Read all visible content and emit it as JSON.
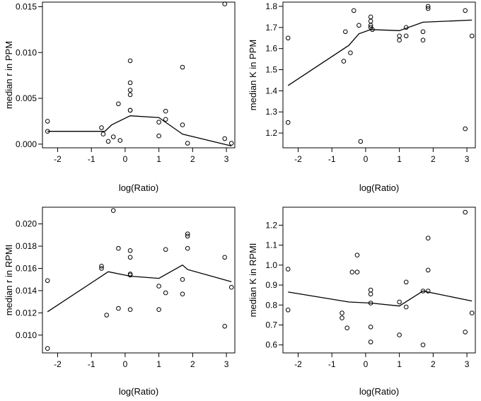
{
  "chart_data": [
    {
      "type": "scatter",
      "title": "",
      "xlabel": "log(Ratio)",
      "ylabel": "median r in PPM",
      "xlim": [
        -2.45,
        3.25
      ],
      "ylim": [
        -0.0004,
        0.0155
      ],
      "xticks": [
        -2,
        -1,
        0,
        1,
        2,
        3
      ],
      "yticks": [
        0.0,
        0.005,
        0.01,
        0.015
      ],
      "ytick_labels": [
        "0.000",
        "0.005",
        "0.010",
        "0.015"
      ],
      "points": {
        "x": [
          -2.3,
          -2.3,
          -0.7,
          -0.65,
          -0.5,
          -0.35,
          -0.2,
          -0.15,
          0.15,
          0.15,
          0.15,
          0.15,
          0.15,
          0.15,
          1.0,
          1.0,
          1.2,
          1.2,
          1.7,
          1.7,
          1.85,
          2.95,
          2.95,
          3.15
        ],
        "y": [
          0.0025,
          0.0014,
          0.0018,
          0.0011,
          0.0003,
          0.0008,
          0.0044,
          0.0004,
          0.0091,
          0.0067,
          0.0059,
          0.0054,
          0.0037,
          0.0037,
          0.0024,
          0.0009,
          0.0036,
          0.0027,
          0.0084,
          0.0021,
          0.0001,
          0.0153,
          0.0006,
          0.0001
        ]
      },
      "smooth_line": {
        "x": [
          -2.3,
          -0.6,
          -0.4,
          0.15,
          1.0,
          1.7,
          3.15
        ],
        "y": [
          0.0014,
          0.0014,
          0.0021,
          0.0031,
          0.0029,
          0.0011,
          -0.0002
        ]
      }
    },
    {
      "type": "scatter",
      "title": "",
      "xlabel": "log(Ratio)",
      "ylabel": "median K in PPM",
      "xlim": [
        -2.45,
        3.25
      ],
      "ylim": [
        1.13,
        1.82
      ],
      "xticks": [
        -2,
        -1,
        0,
        1,
        2,
        3
      ],
      "yticks": [
        1.2,
        1.3,
        1.4,
        1.5,
        1.6,
        1.7,
        1.8
      ],
      "ytick_labels": [
        "1.2",
        "1.3",
        "1.4",
        "1.5",
        "1.6",
        "1.7",
        "1.8"
      ],
      "points": {
        "x": [
          -2.3,
          -2.3,
          -0.65,
          -0.6,
          -0.45,
          -0.35,
          -0.2,
          -0.15,
          0.15,
          0.15,
          0.15,
          0.15,
          0.2,
          1.0,
          1.0,
          1.2,
          1.2,
          1.7,
          1.7,
          1.85,
          1.85,
          2.95,
          2.95,
          3.15
        ],
        "y": [
          1.65,
          1.25,
          1.54,
          1.68,
          1.58,
          1.78,
          1.71,
          1.16,
          1.75,
          1.73,
          1.71,
          1.7,
          1.69,
          1.66,
          1.64,
          1.7,
          1.66,
          1.68,
          1.64,
          1.8,
          1.79,
          1.78,
          1.22,
          1.66
        ]
      },
      "smooth_line": {
        "x": [
          -2.3,
          -0.5,
          -0.2,
          0.15,
          1.0,
          1.7,
          3.15
        ],
        "y": [
          1.425,
          1.615,
          1.67,
          1.69,
          1.685,
          1.725,
          1.735
        ]
      }
    },
    {
      "type": "scatter",
      "title": "",
      "xlabel": "log(Ratio)",
      "ylabel": "median r in RPMI",
      "xlim": [
        -2.45,
        3.25
      ],
      "ylim": [
        0.0084,
        0.0215
      ],
      "xticks": [
        -2,
        -1,
        0,
        1,
        2,
        3
      ],
      "yticks": [
        0.01,
        0.012,
        0.014,
        0.016,
        0.018,
        0.02
      ],
      "ytick_labels": [
        "0.010",
        "0.012",
        "0.014",
        "0.016",
        "0.018",
        "0.020"
      ],
      "points": {
        "x": [
          -2.3,
          -2.3,
          -0.7,
          -0.7,
          -0.55,
          -0.35,
          -0.2,
          -0.2,
          0.15,
          0.15,
          0.15,
          0.15,
          0.15,
          1.0,
          1.0,
          1.2,
          1.2,
          1.7,
          1.7,
          1.85,
          1.85,
          1.85,
          2.95,
          2.95,
          3.15
        ],
        "y": [
          0.0149,
          0.0088,
          0.0162,
          0.016,
          0.0118,
          0.0212,
          0.0178,
          0.0124,
          0.0176,
          0.017,
          0.0155,
          0.0154,
          0.0123,
          0.0144,
          0.0123,
          0.0177,
          0.0138,
          0.015,
          0.0137,
          0.0191,
          0.0189,
          0.0178,
          0.017,
          0.0108,
          0.0143
        ]
      },
      "smooth_line": {
        "x": [
          -2.3,
          -0.5,
          0.15,
          1.0,
          1.7,
          1.85,
          3.15
        ],
        "y": [
          0.0121,
          0.0157,
          0.0153,
          0.0151,
          0.0163,
          0.0159,
          0.0148
        ]
      }
    },
    {
      "type": "scatter",
      "title": "",
      "xlabel": "log(Ratio)",
      "ylabel": "median K in RPMI",
      "xlim": [
        -2.45,
        3.25
      ],
      "ylim": [
        0.56,
        1.29
      ],
      "xticks": [
        -2,
        -1,
        0,
        1,
        2,
        3
      ],
      "yticks": [
        0.6,
        0.7,
        0.8,
        0.9,
        1.0,
        1.1,
        1.2
      ],
      "ytick_labels": [
        "0.6",
        "0.7",
        "0.8",
        "0.9",
        "1.0",
        "1.1",
        "1.2"
      ],
      "points": {
        "x": [
          -2.3,
          -2.3,
          -0.7,
          -0.7,
          -0.55,
          -0.4,
          -0.25,
          -0.25,
          0.15,
          0.15,
          0.15,
          0.15,
          0.15,
          1.0,
          1.0,
          1.2,
          1.2,
          1.7,
          1.7,
          1.85,
          1.85,
          1.85,
          2.95,
          2.95,
          3.15
        ],
        "y": [
          0.98,
          0.775,
          0.76,
          0.735,
          0.685,
          0.965,
          1.05,
          0.965,
          0.875,
          0.855,
          0.81,
          0.69,
          0.615,
          0.815,
          0.65,
          0.915,
          0.79,
          0.87,
          0.6,
          1.135,
          0.975,
          0.87,
          1.265,
          0.665,
          0.76
        ]
      },
      "smooth_line": {
        "x": [
          -2.3,
          -0.5,
          0.15,
          1.0,
          1.7,
          3.15
        ],
        "y": [
          0.865,
          0.815,
          0.81,
          0.795,
          0.87,
          0.82
        ]
      }
    }
  ]
}
